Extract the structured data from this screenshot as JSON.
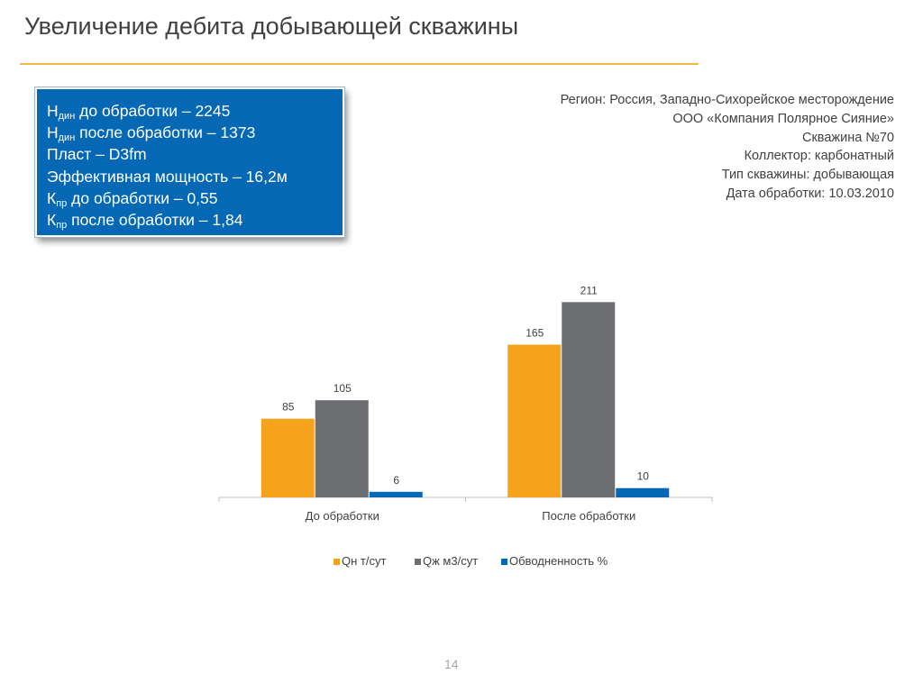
{
  "slide": {
    "title": "Увеличение дебита добывающей скважины",
    "page_number": "14"
  },
  "info_box": {
    "lines": [
      {
        "symbol": "H",
        "sub": "дин",
        "text": " до обработки – 2245"
      },
      {
        "symbol": "H",
        "sub": "дин",
        "text": " после обработки – 1373"
      },
      {
        "symbol": "",
        "sub": "",
        "text": "Пласт – D3fm"
      },
      {
        "symbol": "",
        "sub": "",
        "text": "Эффективная мощность – 16,2м"
      },
      {
        "symbol": "К",
        "sub": "пр",
        "text": " до обработки – 0,55"
      },
      {
        "symbol": "К",
        "sub": "пр",
        "text": " после обработки – 1,84"
      }
    ],
    "bg_color": "#0468b4"
  },
  "meta": {
    "lines": [
      "Регион: Россия, Западно-Сихорейское месторождение",
      "ООО «Компания Полярное Сияние»",
      "Скважина  №70",
      "Коллектор: карбонатный",
      "Тип скважины: добывающая",
      "Дата обработки: 10.03.2010"
    ]
  },
  "chart_data": {
    "type": "bar",
    "categories": [
      "До обработки",
      "После обработки"
    ],
    "series": [
      {
        "name": "Qн т/сут",
        "values": [
          85,
          165
        ],
        "color": "#f5a31b"
      },
      {
        "name": "Qж м3/сут",
        "values": [
          105,
          211
        ],
        "color": "#6d6e71"
      },
      {
        "name": "Обводненность %",
        "values": [
          6,
          10
        ],
        "color": "#0468b4"
      }
    ],
    "title": "",
    "xlabel": "",
    "ylabel": "",
    "ylim": [
      0,
      250
    ],
    "grid": false,
    "legend": "bottom",
    "data_labels": true
  }
}
